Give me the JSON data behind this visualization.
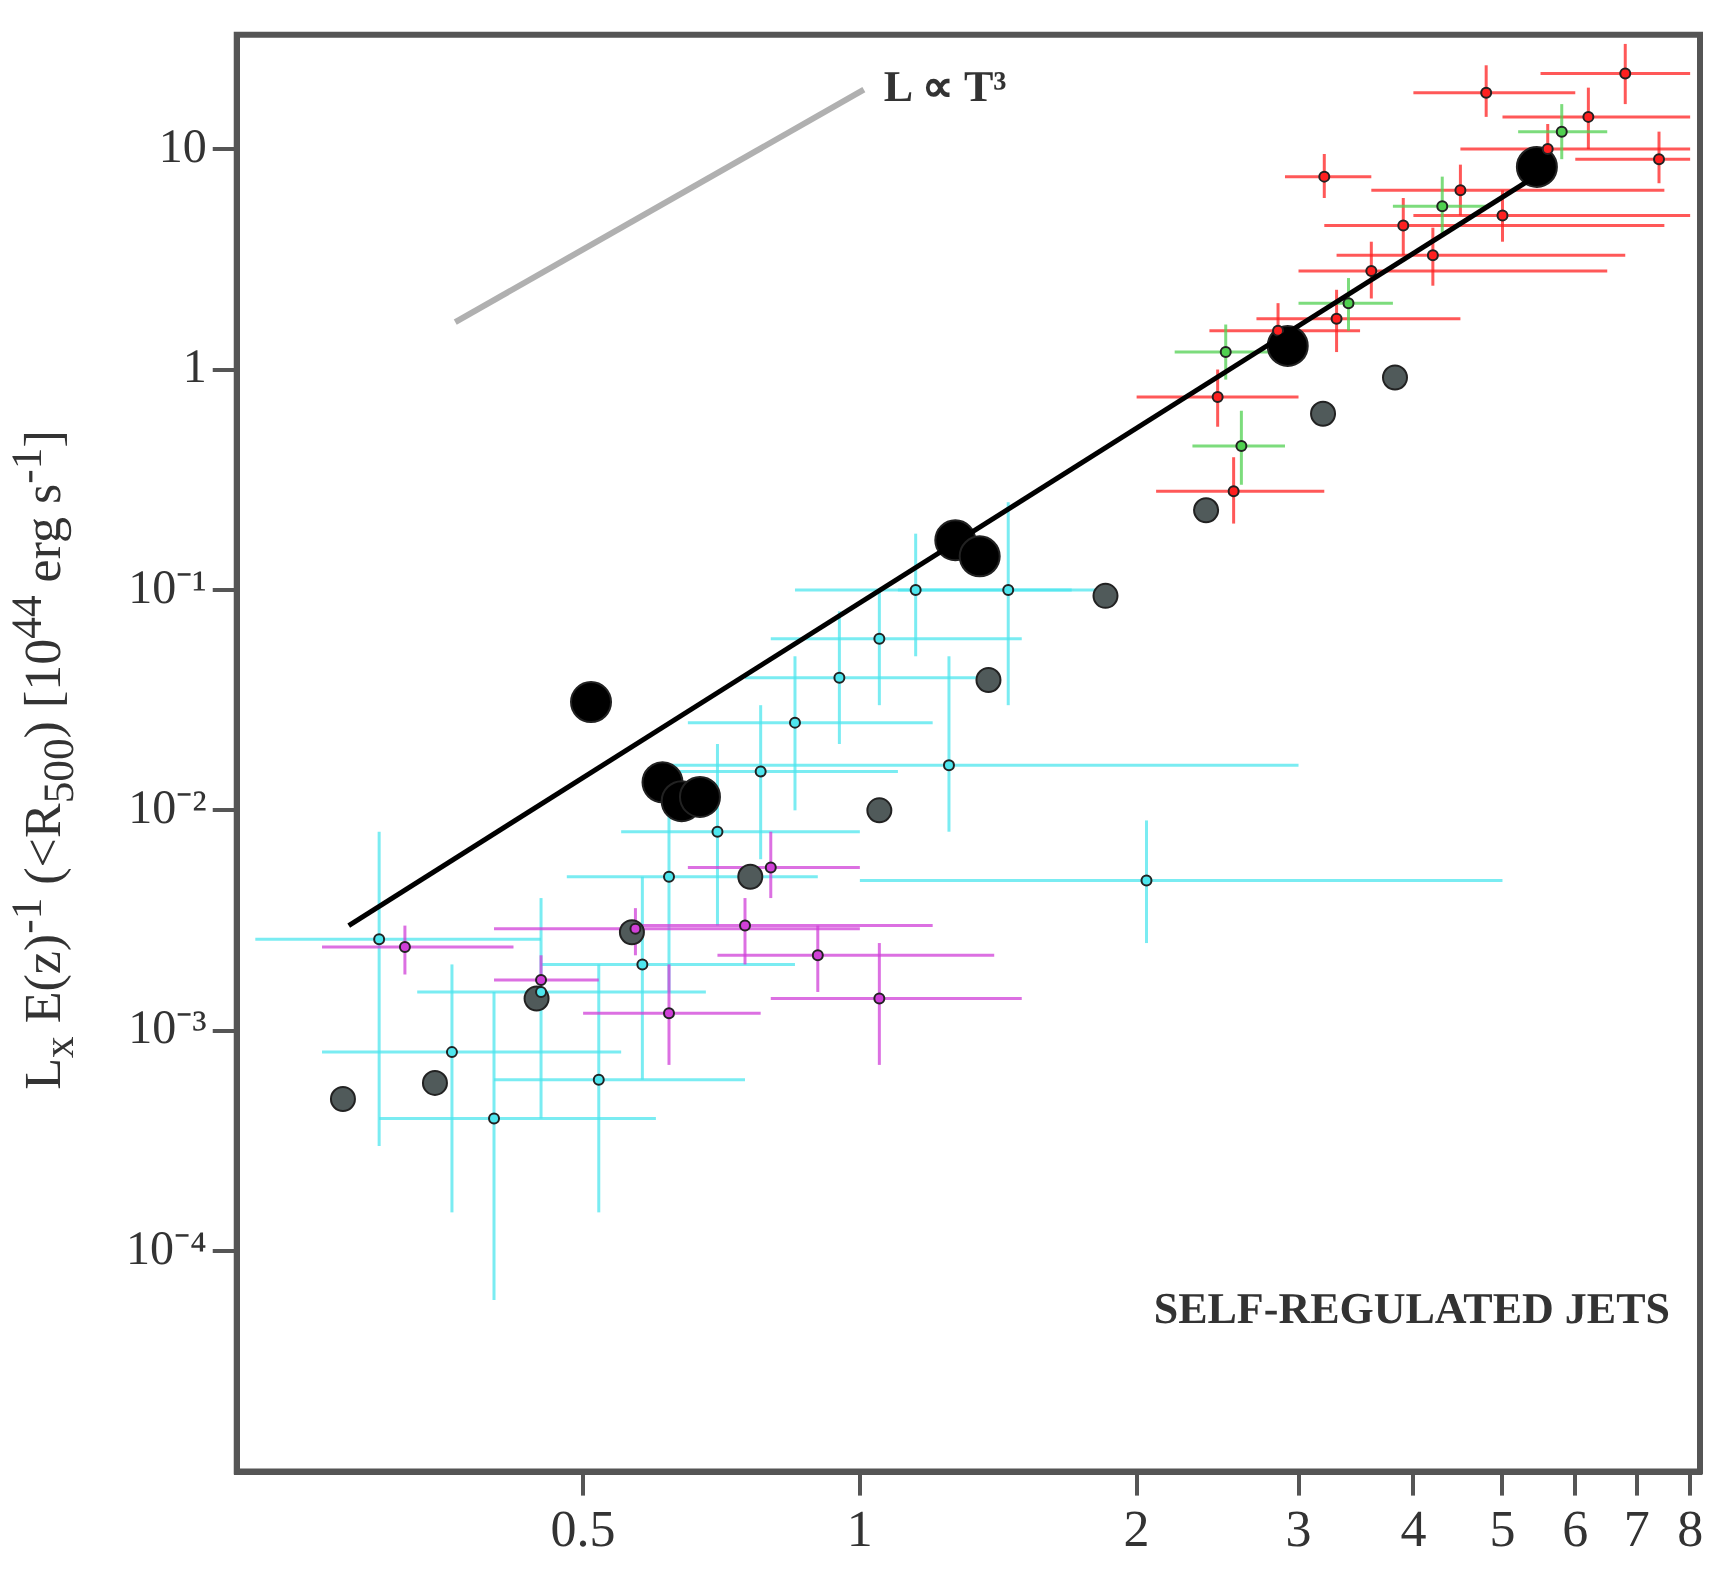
{
  "chart_data": {
    "type": "scatter",
    "ylabel": "L$_{x}$ E(z)$^{-1}$ (<R$_{500}$) [10$^{44}$ erg s$^{-1}$]",
    "log": "xy",
    "grid": false,
    "legend": false,
    "xlim": [
      0.21,
      8.2
    ],
    "xticks": [
      0.5,
      1,
      2,
      3,
      4,
      5,
      6,
      7,
      8
    ],
    "ylim": [
      1e-05,
      33
    ],
    "yticks": [
      {
        "value": 10,
        "label": "10"
      },
      {
        "value": 1,
        "label": "1"
      },
      {
        "value": 0.1,
        "label": "10⁻¹"
      },
      {
        "value": 0.01,
        "label": "10⁻²"
      },
      {
        "value": 0.001,
        "label": "10⁻³"
      },
      {
        "value": 0.0001,
        "label": "10⁻⁴"
      }
    ],
    "annotations": [
      "SELF-REGULATED JETS"
    ],
    "series": [
      {
        "color": "#4ee6ee",
        "marker": "circle",
        "x": [
          0.3,
          0.36,
          0.4,
          0.45,
          0.52,
          0.58,
          0.62,
          0.7,
          0.78,
          0.85,
          0.95,
          1.05,
          1.15,
          1.25,
          2.05,
          1.45
        ],
        "values": [
          0.0026,
          0.0008,
          0.0004,
          0.0015,
          0.0006,
          0.002,
          0.005,
          0.008,
          0.015,
          0.025,
          0.04,
          0.06,
          0.1,
          0.016,
          0.0048,
          0.1
        ],
        "xerrors": [
          [
            0.22,
            0.45
          ],
          [
            0.26,
            0.55
          ],
          [
            0.3,
            0.6
          ],
          [
            0.33,
            0.68
          ],
          [
            0.4,
            0.75
          ],
          [
            0.45,
            0.85
          ],
          [
            0.48,
            0.9
          ],
          [
            0.55,
            1.0
          ],
          [
            0.6,
            1.1
          ],
          [
            0.65,
            1.2
          ],
          [
            0.75,
            1.35
          ],
          [
            0.8,
            1.5
          ],
          [
            0.85,
            1.7
          ],
          [
            0.6,
            3.0
          ],
          [
            1.0,
            5.0
          ],
          [
            1.1,
            1.9
          ]
        ],
        "errors": [
          [
            0.0003,
            0.008
          ],
          [
            0.00015,
            0.002
          ],
          [
            6e-05,
            0.0015
          ],
          [
            0.0004,
            0.004
          ],
          [
            0.00015,
            0.002
          ],
          [
            0.0006,
            0.005
          ],
          [
            0.0015,
            0.012
          ],
          [
            0.003,
            0.02
          ],
          [
            0.006,
            0.03
          ],
          [
            0.01,
            0.05
          ],
          [
            0.02,
            0.08
          ],
          [
            0.03,
            0.1
          ],
          [
            0.05,
            0.18
          ],
          [
            0.008,
            0.05
          ],
          [
            0.0025,
            0.009
          ],
          [
            0.03,
            0.25
          ]
        ]
      },
      {
        "color": "#d040d8",
        "marker": "circle",
        "x": [
          0.32,
          0.45,
          0.57,
          0.62,
          0.75,
          0.9,
          1.05,
          0.8
        ],
        "values": [
          0.0024,
          0.0017,
          0.0029,
          0.0012,
          0.003,
          0.0022,
          0.0014,
          0.0055
        ],
        "xerrors": [
          [
            0.26,
            0.42
          ],
          [
            0.4,
            0.52
          ],
          [
            0.4,
            1.0
          ],
          [
            0.5,
            0.78
          ],
          [
            0.55,
            1.2
          ],
          [
            0.7,
            1.4
          ],
          [
            0.8,
            1.5
          ],
          [
            0.65,
            1.0
          ]
        ],
        "errors": [
          [
            0.0018,
            0.003
          ],
          [
            0.0013,
            0.0022
          ],
          [
            0.0022,
            0.0036
          ],
          [
            0.0007,
            0.002
          ],
          [
            0.002,
            0.004
          ],
          [
            0.0015,
            0.003
          ],
          [
            0.0007,
            0.0025
          ],
          [
            0.004,
            0.008
          ]
        ]
      },
      {
        "color": "#ff2020",
        "marker": "circle",
        "x": [
          2.45,
          2.55,
          2.85,
          3.3,
          3.6,
          3.9,
          4.2,
          4.5,
          5.0,
          5.6,
          6.2,
          6.8,
          4.8,
          7.4,
          3.2
        ],
        "values": [
          0.75,
          0.28,
          1.5,
          1.7,
          2.8,
          4.5,
          3.3,
          6.5,
          5.0,
          10,
          14,
          22,
          18,
          9,
          7.5
        ],
        "xerrors": [
          [
            2.0,
            3.0
          ],
          [
            2.1,
            3.2
          ],
          [
            2.4,
            3.5
          ],
          [
            2.7,
            4.5
          ],
          [
            3.0,
            6.5
          ],
          [
            3.2,
            7.5
          ],
          [
            3.3,
            6.8
          ],
          [
            3.6,
            7.5
          ],
          [
            4.0,
            8.0
          ],
          [
            4.5,
            8.0
          ],
          [
            5.0,
            8.0
          ],
          [
            5.5,
            8.0
          ],
          [
            4.0,
            6.0
          ],
          [
            6.0,
            8.0
          ],
          [
            2.9,
            3.6
          ]
        ],
        "errors": [
          [
            0.55,
            1.0
          ],
          [
            0.2,
            0.4
          ],
          [
            1.1,
            2.0
          ],
          [
            1.2,
            2.3
          ],
          [
            2.1,
            3.8
          ],
          [
            3.3,
            6.0
          ],
          [
            2.4,
            4.4
          ],
          [
            5,
            8.5
          ],
          [
            3.8,
            6.5
          ],
          [
            7.5,
            13
          ],
          [
            10,
            19
          ],
          [
            16,
            30
          ],
          [
            14,
            24
          ],
          [
            7,
            12
          ],
          [
            6,
            9.5
          ]
        ]
      },
      {
        "color": "#50d050",
        "marker": "circle",
        "x": [
          2.6,
          2.5,
          3.4,
          4.3,
          5.8
        ],
        "values": [
          0.45,
          1.2,
          2.0,
          5.5,
          12
        ],
        "xerrors": [
          [
            2.3,
            2.9
          ],
          [
            2.2,
            2.8
          ],
          [
            3.0,
            3.8
          ],
          [
            3.8,
            4.8
          ],
          [
            5.2,
            6.5
          ]
        ],
        "errors": [
          [
            0.3,
            0.65
          ],
          [
            0.9,
            1.6
          ],
          [
            1.5,
            2.6
          ],
          [
            4,
            7.5
          ],
          [
            9,
            16
          ]
        ]
      },
      {
        "color": "#505a5a",
        "marker": "circle",
        "x": [
          0.274,
          0.345,
          0.445,
          0.565,
          0.76,
          1.05,
          1.38,
          1.85,
          2.38,
          3.19,
          3.82
        ],
        "values": [
          0.00049,
          0.00058,
          0.0014,
          0.0028,
          0.005,
          0.01,
          0.039,
          0.094,
          0.23,
          0.63,
          0.92
        ]
      },
      {
        "color": "#000000",
        "marker": "circle",
        "x": [
          0.51,
          0.61,
          0.64,
          0.67,
          1.27,
          1.35,
          2.92,
          5.45
        ],
        "values": [
          0.031,
          0.0134,
          0.011,
          0.0115,
          0.168,
          0.142,
          1.28,
          8.3
        ]
      },
      {
        "type": "line",
        "color": "#000000",
        "marker": "none",
        "line_style": "solid",
        "x": [
          0.278,
          5.45
        ],
        "values": [
          0.003,
          7.6
        ]
      },
      {
        "type": "line",
        "name": "L ∝ T³",
        "color": "#b0b0b0",
        "marker": "none",
        "line_style": "solid",
        "x": [
          0.363,
          1.01
        ],
        "values": [
          1.64,
          18.6
        ]
      }
    ]
  }
}
